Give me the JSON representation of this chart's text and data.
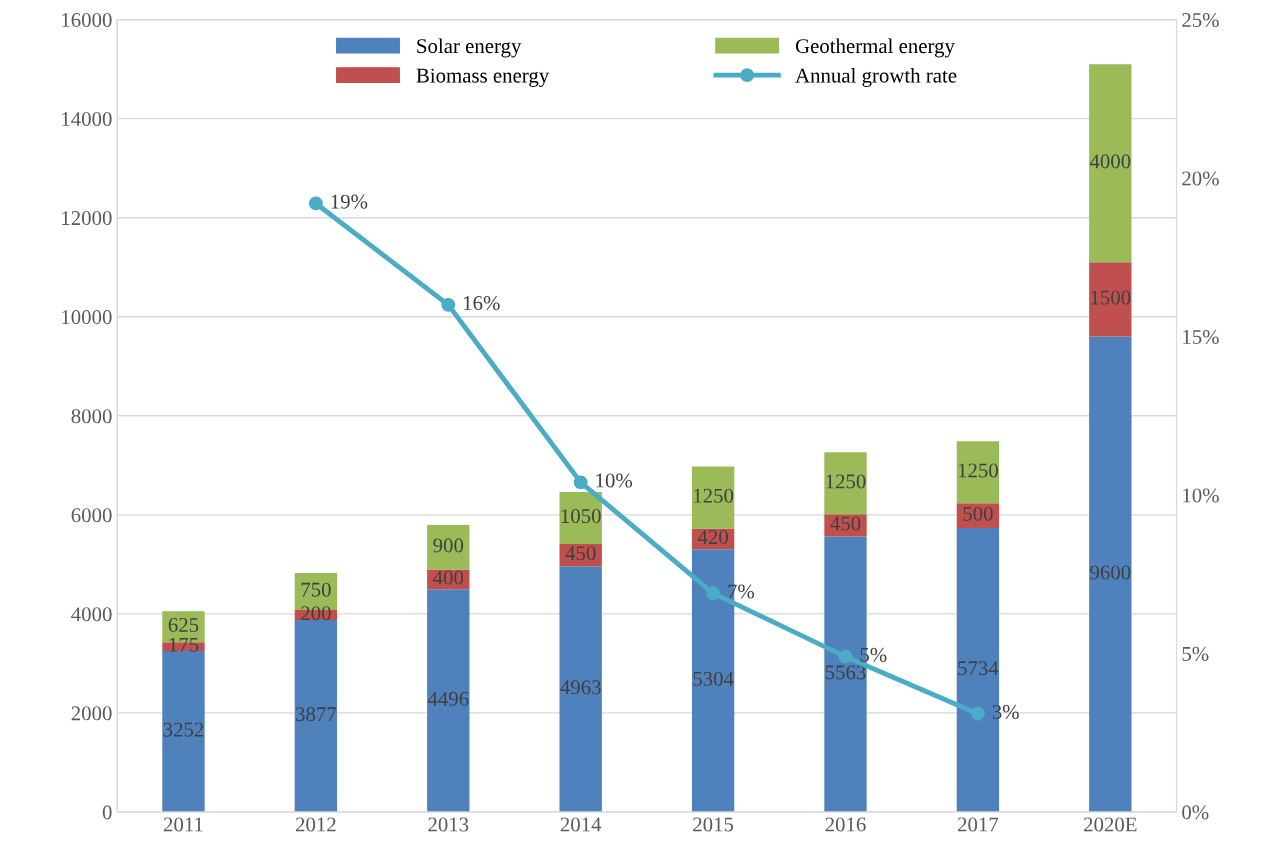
{
  "chart_data": {
    "type": "bar",
    "stacked": true,
    "categories": [
      "2011",
      "2012",
      "2013",
      "2014",
      "2015",
      "2016",
      "2017",
      "2020E"
    ],
    "series": [
      {
        "name": "Solar energy",
        "color": "#4f81bd",
        "values": [
          3252,
          3877,
          4496,
          4963,
          5304,
          5563,
          5734,
          9600
        ]
      },
      {
        "name": "Biomass energy",
        "color": "#c0504d",
        "values": [
          175,
          200,
          400,
          450,
          420,
          450,
          500,
          1500
        ]
      },
      {
        "name": "Geothermal energy",
        "color": "#9bbb59",
        "values": [
          625,
          750,
          900,
          1050,
          1250,
          1250,
          1250,
          4000
        ]
      },
      {
        "name": "Annual growth rate",
        "type": "line",
        "axis": "y2",
        "color": "#4bacc6",
        "marker": "circle",
        "values": [
          null,
          19.2,
          16.0,
          10.4,
          6.9,
          4.9,
          3.1,
          null
        ],
        "value_labels": [
          null,
          "19%",
          "16%",
          "10%",
          "7%",
          "5%",
          "3%",
          null
        ]
      }
    ],
    "data_labels": true,
    "ylim": [
      0,
      16000
    ],
    "yticks": [
      0,
      2000,
      4000,
      6000,
      8000,
      10000,
      12000,
      14000,
      16000
    ],
    "y2lim": [
      0,
      25
    ],
    "y2ticks": [
      {
        "value": 0,
        "label": "0%"
      },
      {
        "value": 5,
        "label": "5%"
      },
      {
        "value": 10,
        "label": "10%"
      },
      {
        "value": 15,
        "label": "15%"
      },
      {
        "value": 20,
        "label": "20%"
      },
      {
        "value": 25,
        "label": "25%"
      }
    ],
    "grid": "y",
    "legend": "top"
  }
}
